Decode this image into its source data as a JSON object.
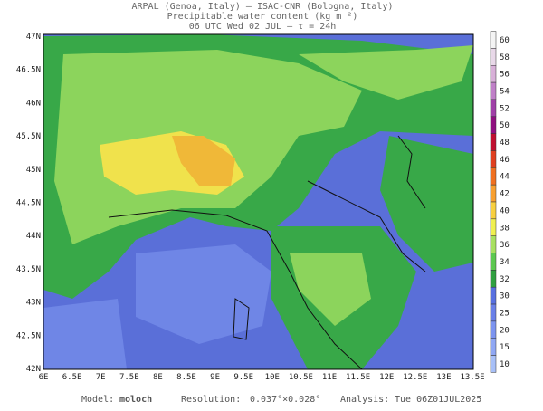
{
  "header": {
    "line1": "ARPAL (Genoa, Italy)  —  ISAC-CNR (Bologna, Italy)",
    "line2": "Precipitable water content (kg m⁻²)",
    "line3": "06 UTC Wed 02 JUL  —  τ = 24h"
  },
  "map": {
    "lat_labels": [
      "47N",
      "46.5N",
      "46N",
      "45.5N",
      "45N",
      "44.5N",
      "44N",
      "43.5N",
      "43N",
      "42.5N",
      "42N"
    ],
    "lon_labels": [
      "6E",
      "6.5E",
      "7E",
      "7.5E",
      "8E",
      "8.5E",
      "9E",
      "9.5E",
      "10E",
      "10.5E",
      "11E",
      "11.5E",
      "12E",
      "12.5E",
      "13E",
      "13.5E"
    ]
  },
  "colorbar": {
    "labels": [
      60,
      58,
      56,
      54,
      52,
      50,
      48,
      46,
      44,
      42,
      40,
      38,
      36,
      34,
      32,
      30,
      25,
      20,
      15,
      10
    ],
    "colors": [
      "#f4f4f4",
      "#e8d8e8",
      "#d8b0d8",
      "#c080c8",
      "#a040a8",
      "#901080",
      "#c01030",
      "#e04020",
      "#f07020",
      "#f8a030",
      "#f8d040",
      "#f0f050",
      "#a8e060",
      "#5cc850",
      "#30a040",
      "#5870e0",
      "#6a80e8",
      "#7c94f0",
      "#90a8f4",
      "#a8c0f8"
    ]
  },
  "footer": {
    "model_label": "Model:",
    "model": "moloch",
    "resolution_label": "Resolution:",
    "resolution": "0.037°×0.028°",
    "analysis_label": "Analysis:",
    "analysis": "Tue 06Z01JUL2025"
  }
}
